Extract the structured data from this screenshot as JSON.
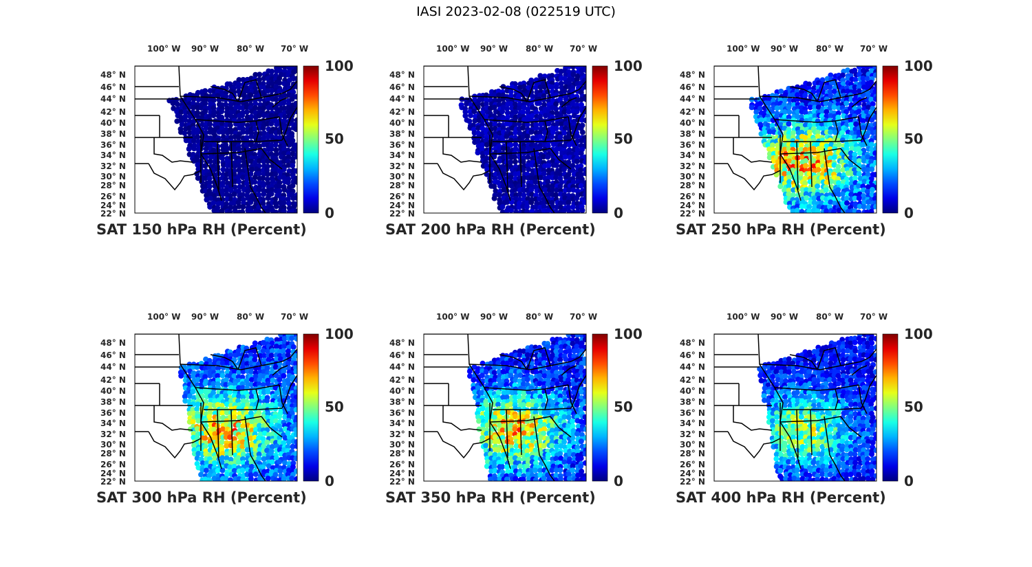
{
  "figure_title": "IASI 2023-02-08 (022519 UTC)",
  "colormap": "jet",
  "colorbar": {
    "min_label": "0",
    "mid_label": "50",
    "max_label": "100"
  },
  "lon_labels": [
    "100° W",
    "90° W",
    "80° W",
    "70° W"
  ],
  "lat_labels": [
    "48° N",
    "46° N",
    "44° N",
    "42° N",
    "40° N",
    "38° N",
    "36° N",
    "34° N",
    "32° N",
    "30° N",
    "28° N",
    "26° N",
    "24° N",
    "22° N"
  ],
  "panels": [
    {
      "title": "SAT 150 hPa RH (Percent)",
      "pressure_hpa": 150,
      "rh_min": 0,
      "rh_max": 12,
      "swath": "east-narrow"
    },
    {
      "title": "SAT 200 hPa RH (Percent)",
      "pressure_hpa": 200,
      "rh_min": 0,
      "rh_max": 22,
      "swath": "east-narrow"
    },
    {
      "title": "SAT 250 hPa RH (Percent)",
      "pressure_hpa": 250,
      "rh_min": 5,
      "rh_max": 95,
      "swath": "east-narrow"
    },
    {
      "title": "SAT 300 hPa RH (Percent)",
      "pressure_hpa": 300,
      "rh_min": 8,
      "rh_max": 90,
      "swath": "east-wide"
    },
    {
      "title": "SAT 350 hPa RH (Percent)",
      "pressure_hpa": 350,
      "rh_min": 5,
      "rh_max": 88,
      "swath": "east-wide"
    },
    {
      "title": "SAT 400 hPa RH (Percent)",
      "pressure_hpa": 400,
      "rh_min": 5,
      "rh_max": 70,
      "swath": "east-wide"
    }
  ]
}
